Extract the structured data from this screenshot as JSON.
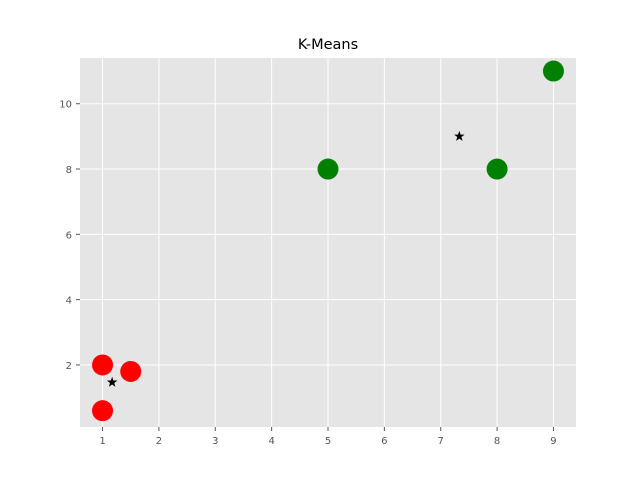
{
  "chart_data": {
    "type": "scatter",
    "title": "K-Means",
    "xlabel": "",
    "ylabel": "",
    "xlim": [
      0.6,
      9.4
    ],
    "ylim": [
      0.1,
      11.4
    ],
    "xticks": [
      1,
      2,
      3,
      4,
      5,
      6,
      7,
      8,
      9
    ],
    "yticks": [
      2,
      4,
      6,
      8,
      10
    ],
    "grid": true,
    "background": "#e5e5e5",
    "series": [
      {
        "color": "#ff0000",
        "marker": "circle",
        "points": [
          [
            1,
            2
          ],
          [
            1.5,
            1.8
          ],
          [
            1,
            0.6
          ]
        ]
      },
      {
        "color": "#008000",
        "marker": "circle",
        "points": [
          [
            5,
            8
          ],
          [
            8,
            8
          ],
          [
            9,
            11
          ]
        ]
      },
      {
        "color": "#000000",
        "marker": "star",
        "points": [
          [
            1.17,
            1.47
          ],
          [
            7.33,
            9.0
          ]
        ]
      }
    ]
  }
}
